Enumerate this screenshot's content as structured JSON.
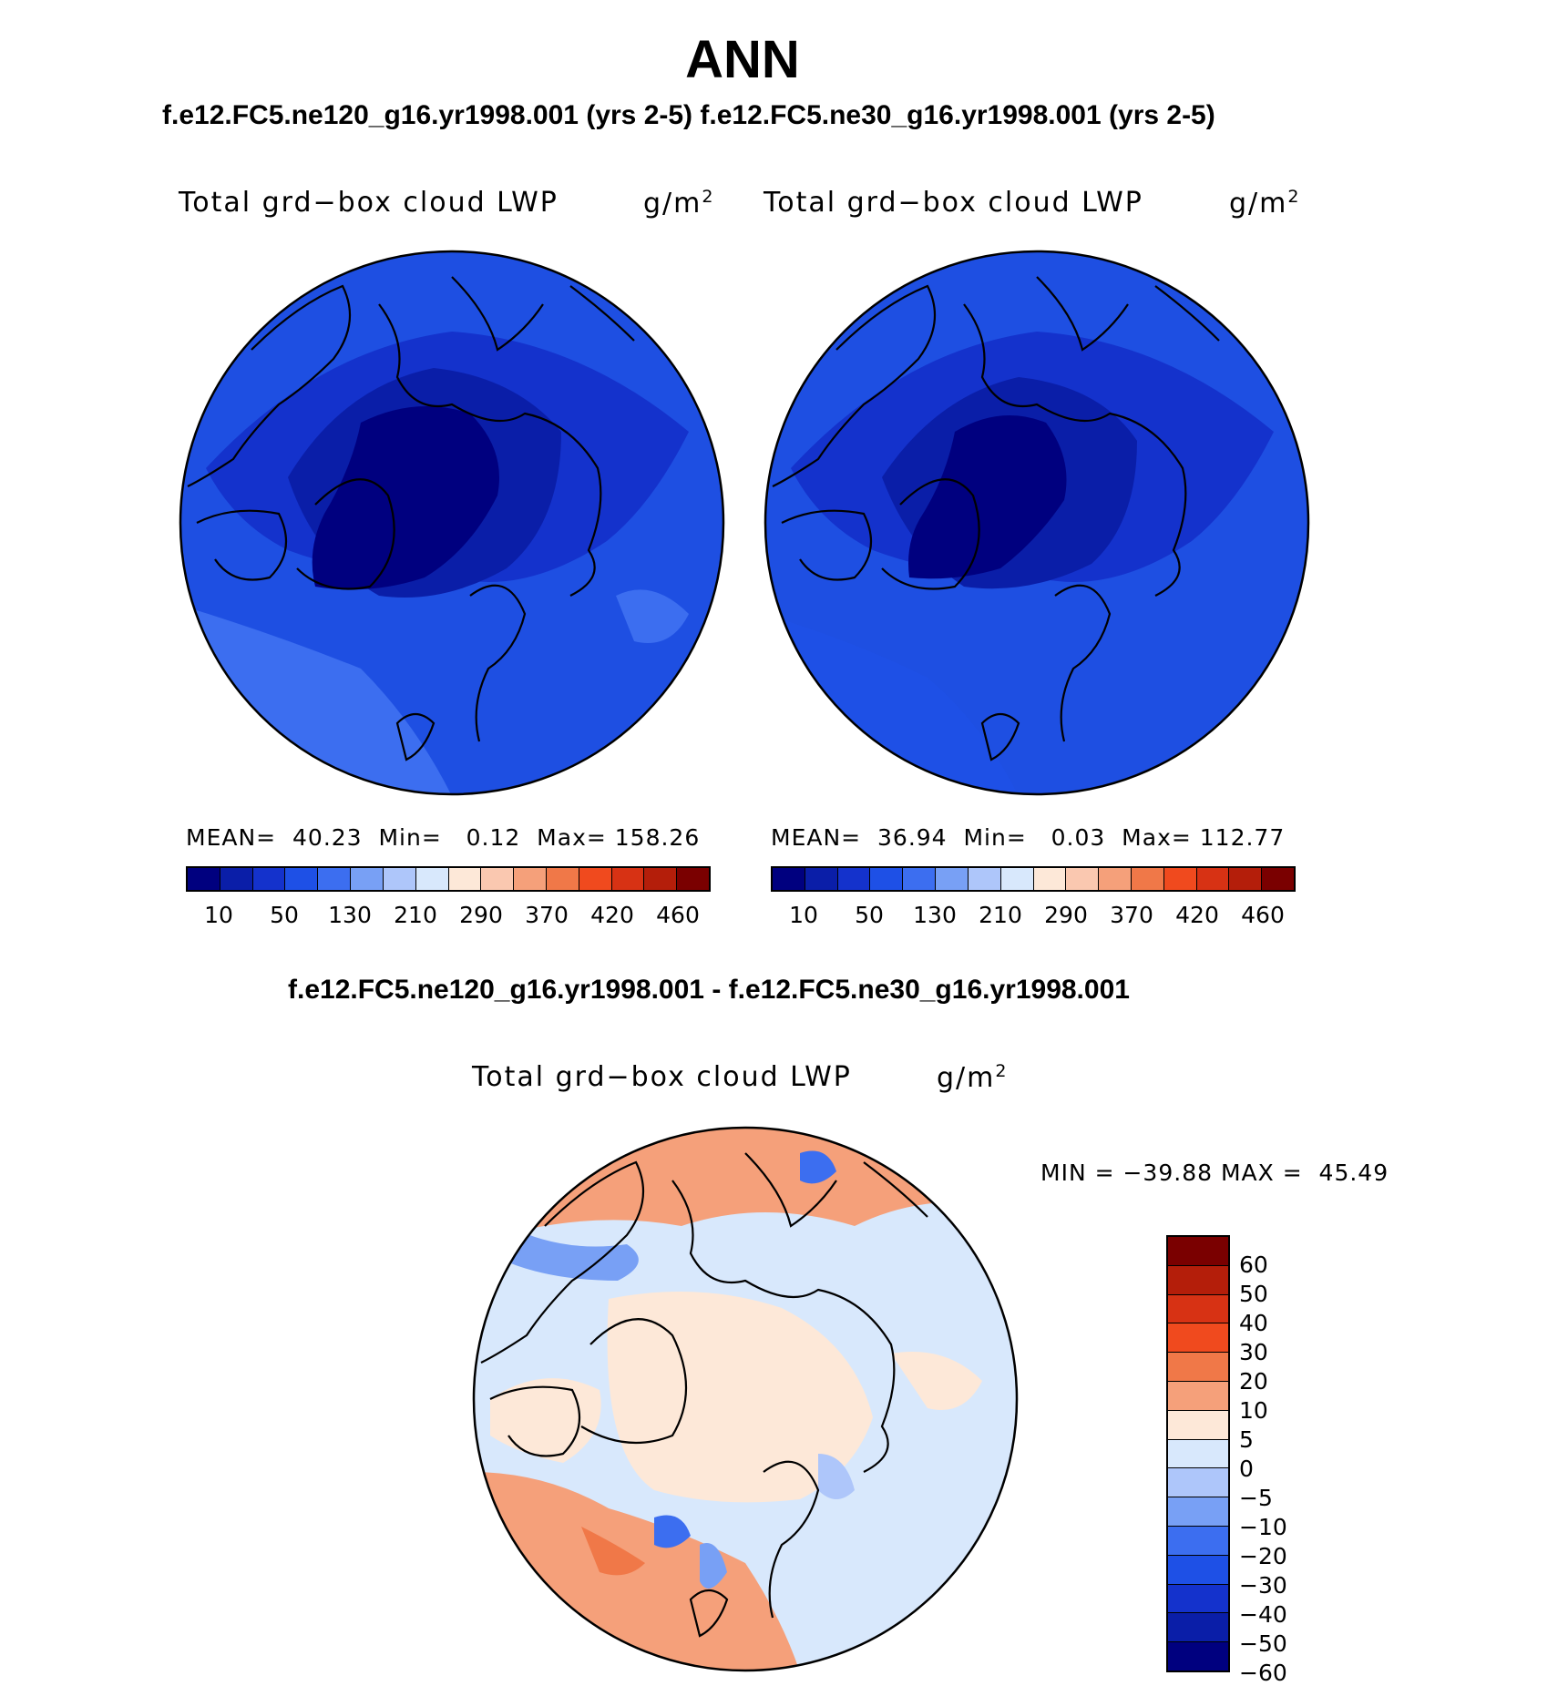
{
  "title": "ANN",
  "subtitle_top": "f.e12.FC5.ne120_g16.yr1998.001 (yrs 2-5)  f.e12.FC5.ne30_g16.yr1998.001 (yrs 2-5)",
  "subtitle_diff": "f.e12.FC5.ne120_g16.yr1998.001 - f.e12.FC5.ne30_g16.yr1998.001",
  "panels": [
    {
      "label": "Total grd−box cloud LWP",
      "units": "g/m",
      "units_sup": "2",
      "stats": "MEAN=  40.23  Min=   0.12  Max= 158.26"
    },
    {
      "label": "Total grd−box cloud LWP",
      "units": "g/m",
      "units_sup": "2",
      "stats": "MEAN=  36.94  Min=   0.03  Max= 112.77"
    },
    {
      "label": "Total grd−box cloud LWP",
      "units": "g/m",
      "units_sup": "2",
      "stats": "MIN = −39.88 MAX =  45.49"
    }
  ],
  "abs_colorbar": {
    "colors": [
      "#00007f",
      "#0a1ea8",
      "#1432cc",
      "#1e50e6",
      "#3c6ef0",
      "#78a0f5",
      "#aec6fa",
      "#d8e8fc",
      "#fde8d8",
      "#fac8b0",
      "#f5a07a",
      "#f07848",
      "#f04a1e",
      "#d73214",
      "#b41e0a",
      "#7a0000"
    ],
    "labels": [
      "10",
      "50",
      "130",
      "210",
      "290",
      "370",
      "420",
      "460"
    ]
  },
  "diff_colorbar": {
    "colors": [
      "#7a0000",
      "#b41e0a",
      "#d73214",
      "#f04a1e",
      "#f07848",
      "#f5a07a",
      "#fde8d8",
      "#d8e8fc",
      "#aec6fa",
      "#78a0f5",
      "#3c6ef0",
      "#1e50e6",
      "#1432cc",
      "#0a1ea8",
      "#00007f"
    ],
    "labels": [
      "60",
      "50",
      "40",
      "30",
      "20",
      "10",
      "5",
      "0",
      "−5",
      "−10",
      "−20",
      "−30",
      "−40",
      "−50",
      "−60"
    ]
  },
  "map_colors": {
    "ocean_abs": "#1e4fe2",
    "mid_abs": "#1432cc",
    "dark_abs": "#0a1ea8",
    "darkest_abs": "#00007f",
    "light_abs": "#3c6ef0",
    "diff_base": "#d8e8fc",
    "diff_warm": "#fde8d8",
    "diff_warm2": "#f5a07a",
    "diff_blue": "#aec6fa",
    "diff_blue2": "#3c6ef0"
  }
}
